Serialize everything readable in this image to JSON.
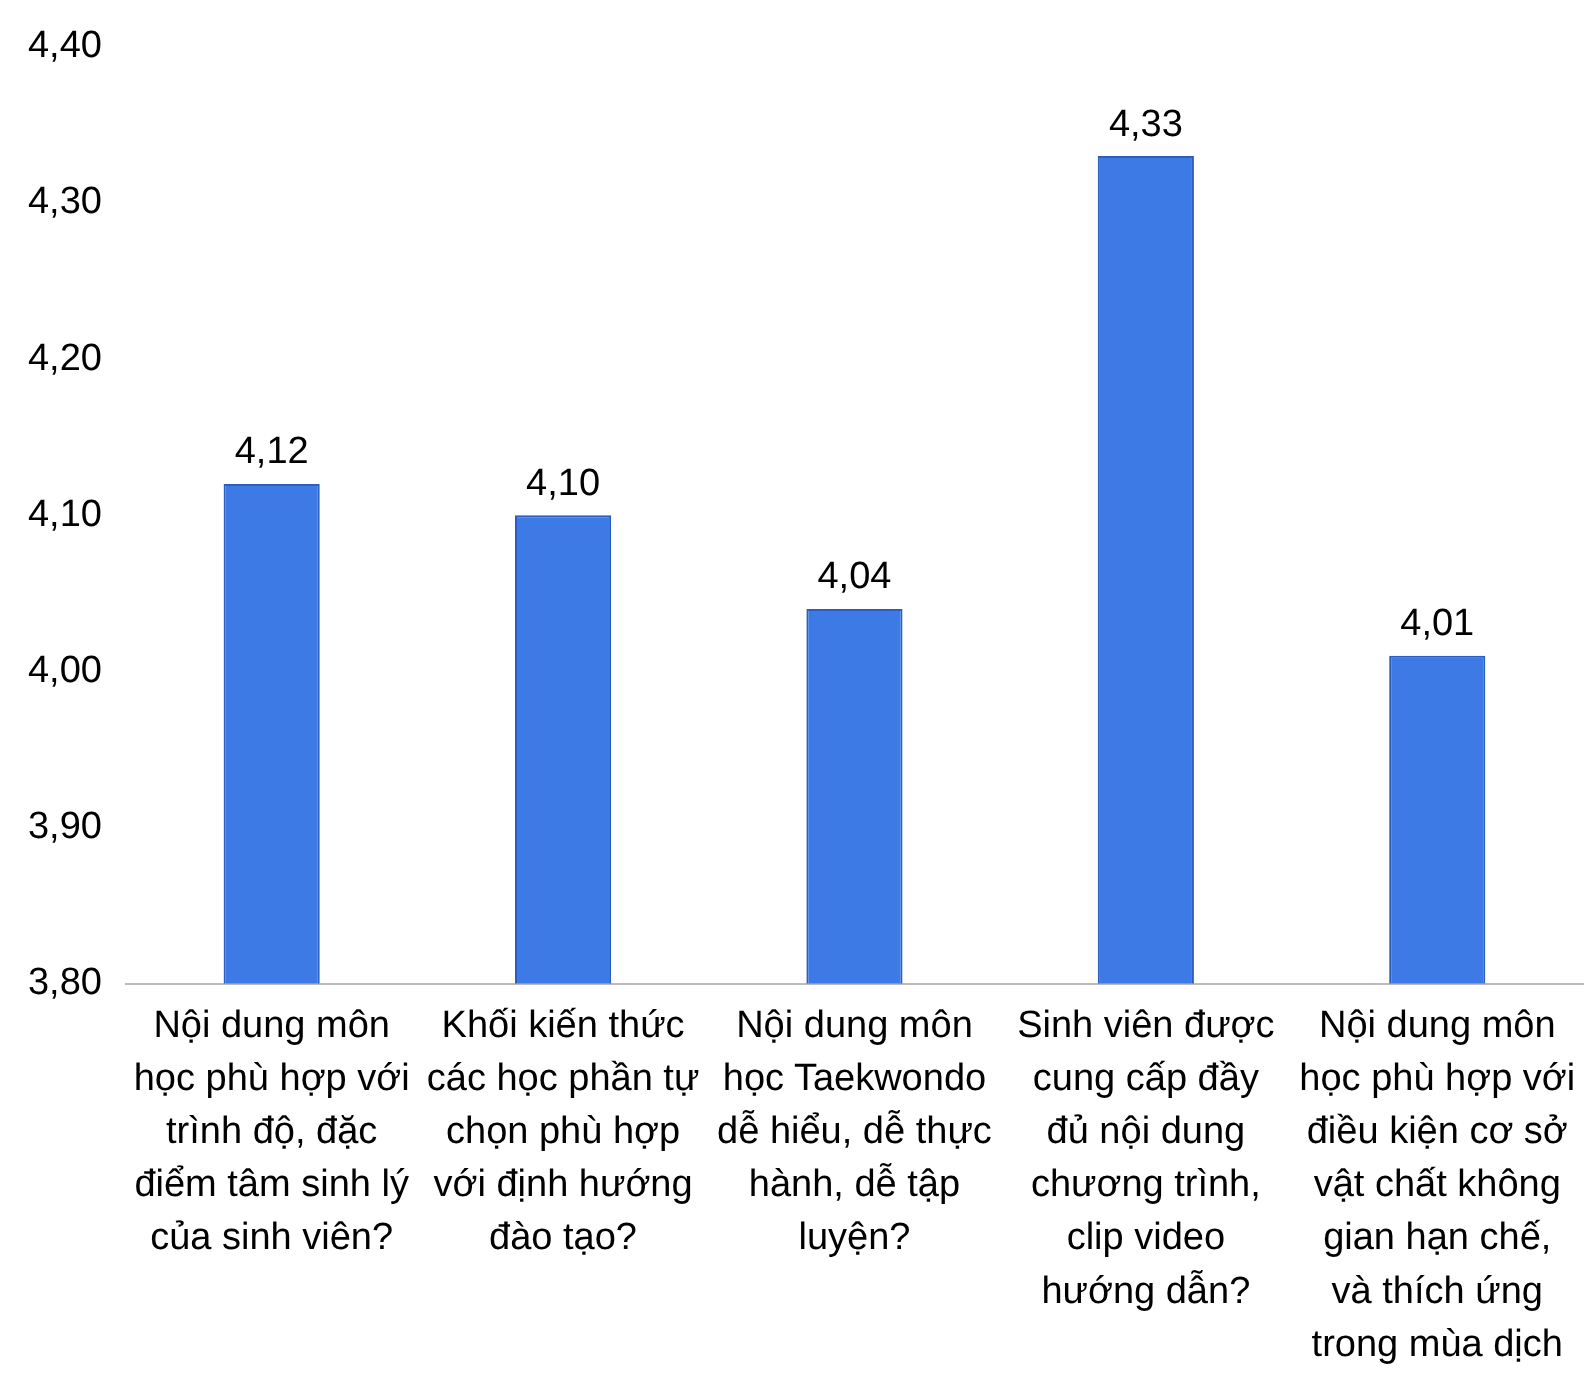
{
  "chart_data": {
    "type": "bar",
    "categories": [
      "Nội dung môn học phù hợp với trình độ, đặc điểm tâm sinh lý của sinh viên?",
      "Khối kiến thức các học phần tự chọn phù hợp với định hướng đào tạo?",
      "Nội dung môn học Taekwondo dễ hiểu, dễ thực hành, dễ tập luyện?",
      "Sinh viên được cung cấp đầy đủ nội dung chương trình, clip video hướng dẫn?",
      "Nội dung môn học phù hợp với điều kiện cơ sở vật chất không gian hạn chế, và thích ứng trong mùa dịch"
    ],
    "values": [
      4.12,
      4.1,
      4.04,
      4.33,
      4.01
    ],
    "value_labels": [
      "4,12",
      "4,10",
      "4,04",
      "4,33",
      "4,01"
    ],
    "color": "#3d7ae6",
    "ylim": [
      3.8,
      4.4
    ],
    "yticks": [
      {
        "value": 3.8,
        "label": "3,80"
      },
      {
        "value": 3.9,
        "label": "3,90"
      },
      {
        "value": 4.0,
        "label": "4,00"
      },
      {
        "value": 4.1,
        "label": "4,10"
      },
      {
        "value": 4.2,
        "label": "4,20"
      },
      {
        "value": 4.3,
        "label": "4,30"
      },
      {
        "value": 4.4,
        "label": "4,40"
      }
    ],
    "grid": false,
    "legend": false
  }
}
